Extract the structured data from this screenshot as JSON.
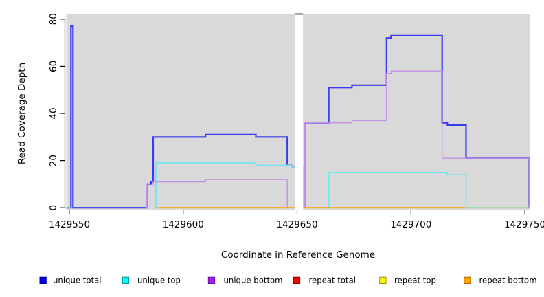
{
  "chart_data": {
    "type": "line",
    "subtype": "step-coverage",
    "xlabel": "Coordinate in Reference Genome",
    "ylabel": "Read Coverage Depth",
    "xlim": [
      1429548.6,
      1429752.4
    ],
    "ylim": [
      0,
      82.5
    ],
    "x_ticks": [
      1429550,
      1429600,
      1429650,
      1429700,
      1429750
    ],
    "y_ticks": [
      0,
      20,
      40,
      60,
      80
    ],
    "grid": false,
    "legend_position": "bottom",
    "panel_background": "#d9d9d9",
    "gap_band": {
      "from": 1429649.0,
      "to": 1429652.6,
      "color": "#ffffff",
      "cap_color": "#a8a8a8"
    },
    "series": [
      {
        "name": "unique total",
        "line_color": "#3a3aee",
        "line_width": 2.2,
        "legend_fill": "#0000f0",
        "legend_border": "#000090",
        "paths": [
          [
            [
              1429548.6,
              0
            ],
            [
              1429550.7,
              77
            ],
            [
              1429551.6,
              0
            ],
            [
              1429583.9,
              10
            ],
            [
              1429585.9,
              11
            ],
            [
              1429586.8,
              30
            ],
            [
              1429609.8,
              31
            ],
            [
              1429631.9,
              30
            ],
            [
              1429645.7,
              18
            ],
            [
              1429647.5,
              17
            ],
            [
              1429652.8,
              0
            ]
          ],
          [
            [
              1429653.3,
              36
            ],
            [
              1429663.9,
              51
            ],
            [
              1429674.1,
              52
            ],
            [
              1429689.3,
              72
            ],
            [
              1429691.3,
              73
            ],
            [
              1429713.7,
              36
            ],
            [
              1429716.0,
              35
            ],
            [
              1429724.2,
              21
            ],
            [
              1429751.9,
              0
            ]
          ]
        ]
      },
      {
        "name": "unique top",
        "line_color": "#70e5ef",
        "line_width": 1.7,
        "legend_fill": "#00ffff",
        "legend_border": "#009090",
        "paths": [
          [
            [
              1429588.0,
              19
            ],
            [
              1429631.9,
              18
            ],
            [
              1429647.5,
              17
            ],
            [
              1429652.8,
              0
            ]
          ],
          [
            [
              1429663.9,
              15
            ],
            [
              1429715.9,
              14
            ],
            [
              1429724.2,
              0
            ]
          ]
        ]
      },
      {
        "name": "unique bottom",
        "line_color": "#c391e8",
        "line_width": 1.4,
        "legend_fill": "#a020f0",
        "legend_border": "#6a0dad",
        "paths": [
          [
            [
              1429583.9,
              10
            ],
            [
              1429586.8,
              11
            ],
            [
              1429609.8,
              12
            ],
            [
              1429645.7,
              0
            ]
          ],
          [
            [
              1429653.3,
              36
            ],
            [
              1429674.1,
              37
            ],
            [
              1429689.3,
              57
            ],
            [
              1429691.3,
              58
            ],
            [
              1429713.7,
              21
            ],
            [
              1429751.9,
              0
            ]
          ]
        ]
      },
      {
        "name": "repeat total",
        "line_color": "#ff0000",
        "line_width": 1.4,
        "legend_fill": "#ff0000",
        "legend_border": "#900000",
        "paths": []
      },
      {
        "name": "repeat top",
        "line_color": "#98dba6",
        "line_width": 1.8,
        "legend_fill": "#ffff00",
        "legend_border": "#909000",
        "paths": []
      },
      {
        "name": "repeat bottom",
        "line_color": "#ff9d00",
        "line_width": 1.8,
        "legend_fill": "#ffa500",
        "legend_border": "#b06000",
        "paths": []
      }
    ],
    "baseline_segments": [
      {
        "series": "repeat top",
        "color": "#98dba6",
        "from": 1429548.6,
        "to": 1429550.7
      },
      {
        "series": "repeat bottom",
        "color": "#ff9d00",
        "from": 1429588.3,
        "to": 1429649.0
      },
      {
        "series": "repeat bottom",
        "color": "#ff9d00",
        "from": 1429652.6,
        "to": 1429724.2
      },
      {
        "series": "repeat top",
        "color": "#98dba6",
        "from": 1429724.2,
        "to": 1429751.9
      }
    ]
  },
  "legend": {
    "items": [
      {
        "label": "unique total"
      },
      {
        "label": "unique top"
      },
      {
        "label": "unique bottom"
      },
      {
        "label": "repeat total"
      },
      {
        "label": "repeat top"
      },
      {
        "label": "repeat bottom"
      }
    ]
  }
}
